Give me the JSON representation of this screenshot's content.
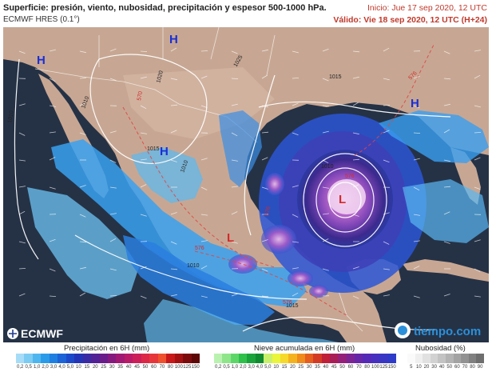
{
  "header": {
    "title": "Superficie: presión, viento, nubosidad, precipitación y espesor 500-1000 hPa.",
    "model": "ECMWF HRES (0.1°)",
    "init": "Inicio: Jue 17 sep 2020, 12 UTC",
    "valid": "Válido: Vie 18 sep 2020, 12 UTC (H+24)"
  },
  "map": {
    "pressure_centers": [
      {
        "type": "H",
        "color": "#1a2fd6"
      },
      {
        "type": "H",
        "color": "#1a2fd6"
      },
      {
        "type": "H",
        "color": "#1a2fd6"
      },
      {
        "type": "H",
        "color": "#1a2fd6"
      },
      {
        "type": "L",
        "color": "#d42a2a"
      },
      {
        "type": "L",
        "color": "#d42a2a"
      }
    ],
    "isobar_labels": [
      "1010",
      "1010",
      "1020",
      "1025",
      "1015",
      "1015",
      "1010",
      "1010",
      "1010",
      "1015"
    ],
    "thickness_labels": [
      "570",
      "576",
      "576",
      "576",
      "576",
      "576"
    ]
  },
  "branding": {
    "ecmwf": "ECMWF",
    "tiempo": "tiempo.com"
  },
  "legends": {
    "precip": {
      "title": "Precipitación en 6H (mm)",
      "ticks": [
        "0,2",
        "0,5",
        "1,0",
        "2,0",
        "3,0",
        "4,0",
        "5,0",
        "10",
        "15",
        "20",
        "25",
        "30",
        "35",
        "40",
        "45",
        "50",
        "60",
        "70",
        "80",
        "100",
        "125",
        "150"
      ],
      "colors": [
        "#a6dcf7",
        "#7ccbf2",
        "#4fb5ee",
        "#2a9be8",
        "#1f7fe0",
        "#1b63d6",
        "#1c49c9",
        "#2335b6",
        "#3a2aa3",
        "#522195",
        "#6a1c8a",
        "#86197e",
        "#a01873",
        "#b81a68",
        "#cc1e58",
        "#dc2748",
        "#e6363a",
        "#ef502e",
        "#c81818",
        "#a31010",
        "#7c0a0a",
        "#5c0606"
      ]
    },
    "snow": {
      "title": "Nieve acumulada en 6H (mm)",
      "ticks": [
        "0,2",
        "0,5",
        "1,0",
        "2,0",
        "3,0",
        "4,0",
        "5,0",
        "10",
        "15",
        "20",
        "25",
        "30",
        "35",
        "40",
        "45",
        "50",
        "60",
        "70",
        "80",
        "100",
        "125",
        "150"
      ],
      "colors": [
        "#b9f2b0",
        "#8fe58a",
        "#5dd668",
        "#2fc04a",
        "#1aa33a",
        "#0f8a2e",
        "#c8f06a",
        "#eaf53b",
        "#f6d92a",
        "#f5b21f",
        "#ef8a1c",
        "#e45e1e",
        "#d43b25",
        "#c02038",
        "#a91d57",
        "#952079",
        "#7c2494",
        "#6726a8",
        "#5429b6",
        "#4730bf",
        "#3a36c4",
        "#2e3ac8"
      ]
    },
    "cloud": {
      "title": "Nubosidad (%)",
      "ticks": [
        "5",
        "10",
        "20",
        "30",
        "40",
        "50",
        "60",
        "70",
        "80",
        "90"
      ],
      "colors": [
        "#fafafa",
        "#efefef",
        "#e1e1e1",
        "#d2d2d2",
        "#c3c3c3",
        "#b3b3b3",
        "#a3a3a3",
        "#929292",
        "#808080",
        "#6e6e6e"
      ]
    }
  }
}
